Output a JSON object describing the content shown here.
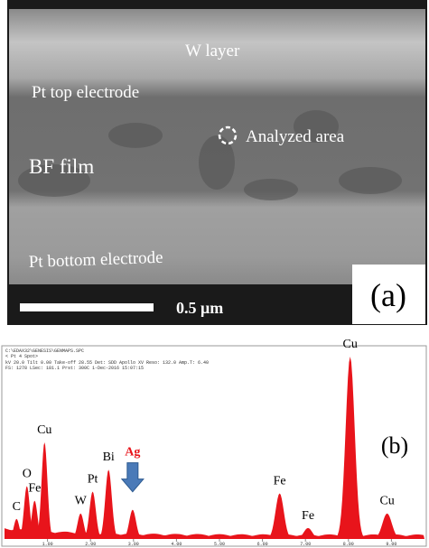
{
  "panel_a": {
    "labels": [
      "W layer",
      "Pt top electrode",
      "Analyzed area",
      "BF film",
      "Pt bottom electrode"
    ],
    "scale_bar": "0.5 μm",
    "tag": "(a)"
  },
  "panel_b": {
    "header": [
      "C:\\EDAX32\\GENESIS\\GENMAPS.SPC",
      "< Pt    4 Spot>",
      "kV 20.0   Tilt 0.00   Take-off 28.55   Det: SDD Apollo XV   Reso: 132.0   Amp.T: 6.40",
      "FS: 1278   LSec: 181.1   Prst: 300C   1-Dec-2016   15:07:15"
    ],
    "tag": "(b)",
    "xlim": [
      0,
      9.6
    ],
    "xticks": [
      {
        "value": 1,
        "label": "1.00"
      },
      {
        "value": 2,
        "label": "2.00"
      },
      {
        "value": 3,
        "label": "3.00"
      },
      {
        "value": 4,
        "label": "4.00"
      },
      {
        "value": 5,
        "label": "5.00"
      },
      {
        "value": 6,
        "label": "6.00"
      },
      {
        "value": 7,
        "label": "7.00"
      },
      {
        "value": 8,
        "label": "8.00"
      },
      {
        "value": 9,
        "label": "9.00"
      }
    ],
    "ylim": [
      0,
      100
    ],
    "color": "#e8141b",
    "peaks": [
      {
        "label": "C",
        "energy": 0.28,
        "height": 11
      },
      {
        "label": "O",
        "energy": 0.52,
        "height": 29
      },
      {
        "label": "Fe",
        "energy": 0.7,
        "height": 21
      },
      {
        "label": "Cu",
        "energy": 0.93,
        "height": 53
      },
      {
        "label": "W",
        "energy": 1.77,
        "height": 14
      },
      {
        "label": "Pt",
        "energy": 2.05,
        "height": 26
      },
      {
        "label": "Bi",
        "energy": 2.42,
        "height": 38
      },
      {
        "label": "Ag",
        "energy": 2.98,
        "height": 16,
        "label_color": "#e8141b"
      },
      {
        "label": "Fe",
        "energy": 6.4,
        "height": 25
      },
      {
        "label": "Fe",
        "energy": 7.06,
        "height": 6
      },
      {
        "label": "Cu",
        "energy": 8.04,
        "height": 100
      },
      {
        "label": "Cu",
        "energy": 8.9,
        "height": 14
      }
    ]
  }
}
